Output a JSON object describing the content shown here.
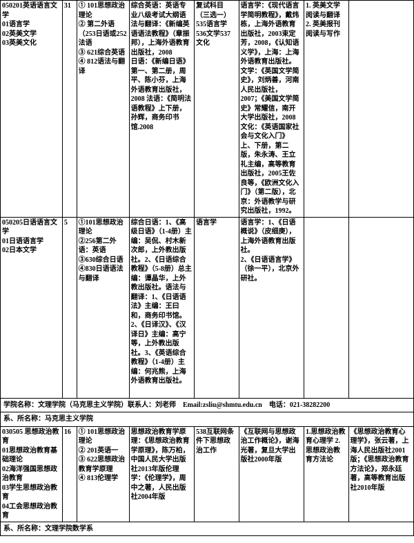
{
  "rows": [
    {
      "c0": "050201英语语言文学\n01语言学\n02英美文学\n03英美文化",
      "c1": "31",
      "c2": "① 101思想政治理论\n② 第二外语（253日语或252法语\n③ 621综合英语\n④ 812语法与翻译",
      "c3": "综合英语：英语专业八级考试大纲语法与翻译：《新编英语语法教程》（章振邦），上海外语教育出版社，2008　　日语：《新编日语》第一、第二册，周平、陈小芬，上海外语教育出版社，2008 法语：《简明法语教程》上下册，孙辉，商务印书馆.2008",
      "c4": "复试科目（三选一）535语言学536文学537文化",
      "c5": "语言学：《现代语言学简明教程》，戴炜栋，上海外语教育出版社，2003束定芳，2008，《认知语义学》，上海：上海外语教育出版社。文学：《英国文学简史》，刘炳善，河南人民出版社，2007；《美国文学简史》常耀信，南开大学出版社，2008 文化：《英语国家社会与文化入门》上、下册，第二版，朱永涛、王立礼主编，高等教育出版社，2005王佐良等，《欧洲文化入门》（第二版），北京：外语教学与研究出版社，1992。",
      "c6": "1. 英美文学阅读与翻译\n2. 英美报刊阅读与写作",
      "c7": ""
    },
    {
      "c0": "050205日语语言文学\n01日语语言学\n02日本文学",
      "c1": "5",
      "c2": "①101思想政治理论\n②256第二外语：英语\n③630综合日语\n④830日语语法与翻译",
      "c3": "综合日语：1、《高级日语》（1-4册）主编：吴侃、村木新次郎，上外教出版社。2、《日语综合教程》（5-8册）总主编：谭晶华，上外教出版社。语法与翻译：1、《日语语法》主编：王曰和，商务印书馆。2、《日译汉》、《汉译日》主编：高宁等，上外教出版社。3、《英语综合教程》（1-4册）主编：何兆熊，上海外语教育出版社。",
      "c4": "语言学",
      "c5": "语言学：1、《日语概说》（皮细庚），上海外语教育出版社。\n2、《日语语言学》（徐一平），北京外研社。",
      "c6": "",
      "c7": ""
    }
  ],
  "college_info": "学院名称：文理学院（马克思主义学院）联系人：刘老师　Email:zsliu@shmtu.edu.cn　电话：021-38282200",
  "dept1": "系、所名称：马克思主义学院",
  "row3": {
    "c0": "030505 思想政治教育\n01思想政治教育基础理论\n02海洋强国思想政治教育\n03学生思想政治教育\n04工会思想政治教育",
    "c1": "16",
    "c2": "① 101思想政治理论\n② 201英语一\n③ 622思想政治教育学原理\n④ 813伦理学",
    "c3": "思想政治教育学原理：《思想政治教育学原理》，陈万柏，中国人民大学出版社2013年版伦理学：《伦理学》，周中之著，人民出版社2004年版",
    "c4": "538互联网条件下思想政治工作",
    "c5": "《互联网与思想政治工作概论》，谢海光著，复旦大学出版社2000年版",
    "c6": "1.思想政治教育心理学 2.思想政治教育方法论",
    "c7": "《思想政治教育心理学》，张云著，上海人民出版社2001版；《思想政治教育方法论》，郑永廷著，高等教育出版社2010年版"
  },
  "dept2": "系、所名称：文理学院数学系",
  "colwidths": [
    "78",
    "18",
    "66",
    "82",
    "56",
    "82",
    "56",
    "82"
  ]
}
